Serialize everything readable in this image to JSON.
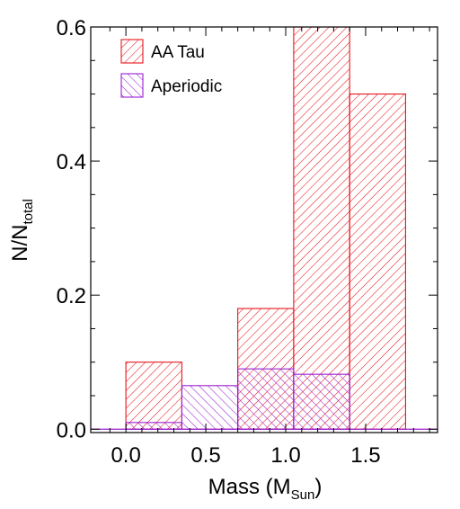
{
  "chart_data": {
    "type": "bar",
    "subtype": "histogram",
    "xlabel": {
      "main": "Mass (M",
      "sub": "Sun",
      "close": ")"
    },
    "ylabel": {
      "main": "N/N",
      "sub": "total"
    },
    "xlim": [
      -0.22,
      1.95
    ],
    "ylim": [
      -0.005,
      0.6
    ],
    "x_ticks": [
      {
        "value": 0.0,
        "label": "0.0"
      },
      {
        "value": 0.5,
        "label": "0.5"
      },
      {
        "value": 1.0,
        "label": "1.0"
      },
      {
        "value": 1.5,
        "label": "1.5"
      }
    ],
    "y_ticks": [
      {
        "value": 0.0,
        "label": "0.0"
      },
      {
        "value": 0.2,
        "label": "0.2"
      },
      {
        "value": 0.4,
        "label": "0.4"
      },
      {
        "value": 0.6,
        "label": "0.6"
      }
    ],
    "grid": false,
    "legend_position": "top-left",
    "series": [
      {
        "name": "AA Tau",
        "color": "#e8151b",
        "hatch": "backslash",
        "bins": [
          {
            "x0": 0.0,
            "x1": 0.35,
            "value": 0.1
          },
          {
            "x0": 0.35,
            "x1": 0.7,
            "value": 0.0
          },
          {
            "x0": 0.7,
            "x1": 1.05,
            "value": 0.18
          },
          {
            "x0": 1.05,
            "x1": 1.4,
            "value": 0.6
          },
          {
            "x0": 1.4,
            "x1": 1.75,
            "value": 0.5
          }
        ]
      },
      {
        "name": "Aperiodic",
        "color": "#9b1fd0",
        "hatch": "slash",
        "bins": [
          {
            "x0": 0.0,
            "x1": 0.35,
            "value": 0.01
          },
          {
            "x0": 0.35,
            "x1": 0.7,
            "value": 0.065
          },
          {
            "x0": 0.7,
            "x1": 1.05,
            "value": 0.09
          },
          {
            "x0": 1.05,
            "x1": 1.4,
            "value": 0.082
          }
        ]
      }
    ]
  }
}
